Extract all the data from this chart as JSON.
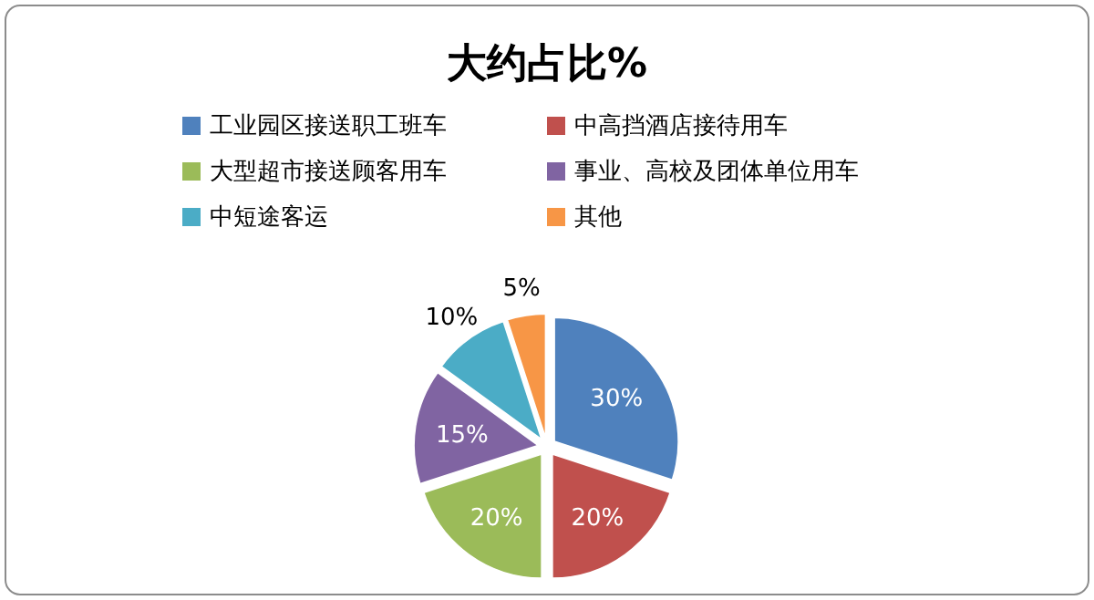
{
  "chart_data": {
    "type": "pie",
    "title": "大约占比%",
    "categories": [
      "工业园区接送职工班车",
      "中高挡酒店接待用车",
      "大型超市接送顾客用车",
      "事业、高校及团体单位用车",
      "中短途客运",
      "其他"
    ],
    "values": [
      30,
      20,
      20,
      15,
      10,
      5
    ],
    "colors": [
      "#4f81bd",
      "#c0504d",
      "#9bbb59",
      "#8064a2",
      "#4bacc6",
      "#f79646"
    ],
    "value_labels": [
      "30%",
      "20%",
      "20%",
      "15%",
      "10%",
      "5%"
    ],
    "legend": "top"
  }
}
